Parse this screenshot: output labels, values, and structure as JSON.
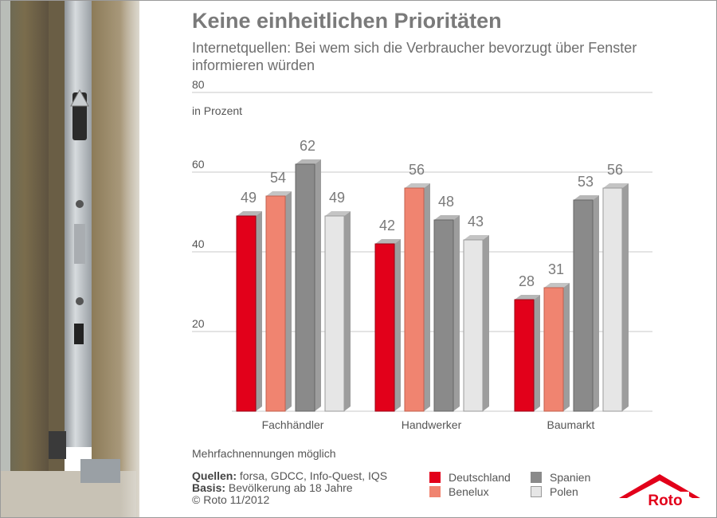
{
  "header": {
    "title": "Keine einheitlichen Prioritäten",
    "subtitle": "Internetquellen: Bei wem sich die Verbraucher bevorzugt über Fenster informieren würden"
  },
  "chart_data": {
    "type": "bar",
    "title": "Keine einheitlichen Prioritäten",
    "subtitle": "Internetquellen: Bei wem sich die Verbraucher bevorzugt über Fenster informieren würden",
    "unit_label": "in Prozent",
    "xlabel": "",
    "ylabel": "",
    "ylim": [
      0,
      80
    ],
    "yticks": [
      20,
      40,
      60,
      80
    ],
    "grid": true,
    "legend_position": "bottom",
    "categories": [
      "Fachhändler",
      "Handwerker",
      "Baumarkt"
    ],
    "series": [
      {
        "name": "Deutschland",
        "color": "#e2001a",
        "values": [
          49,
          42,
          28
        ]
      },
      {
        "name": "Benelux",
        "color": "#f08470",
        "values": [
          54,
          56,
          31
        ]
      },
      {
        "name": "Spanien",
        "color": "#8a8a8a",
        "values": [
          62,
          48,
          53
        ]
      },
      {
        "name": "Polen",
        "color": "#e6e6e6",
        "values": [
          49,
          43,
          56
        ]
      }
    ]
  },
  "footer": {
    "note": "Mehrfachnennungen möglich",
    "sources_label": "Quellen:",
    "sources_text": " forsa, GDCC, Info-Quest, IQS",
    "basis_label": "Basis:",
    "basis_text": " Bevölkerung ab 18 Jahre",
    "copyright": "© Roto 11/2012"
  },
  "legend": [
    {
      "name": "Deutschland",
      "color": "#e2001a"
    },
    {
      "name": "Benelux",
      "color": "#f08470"
    },
    {
      "name": "Spanien",
      "color": "#8a8a8a"
    },
    {
      "name": "Polen",
      "color": "#e6e6e6"
    }
  ],
  "logo": {
    "text": "Roto",
    "color": "#e2001a"
  }
}
